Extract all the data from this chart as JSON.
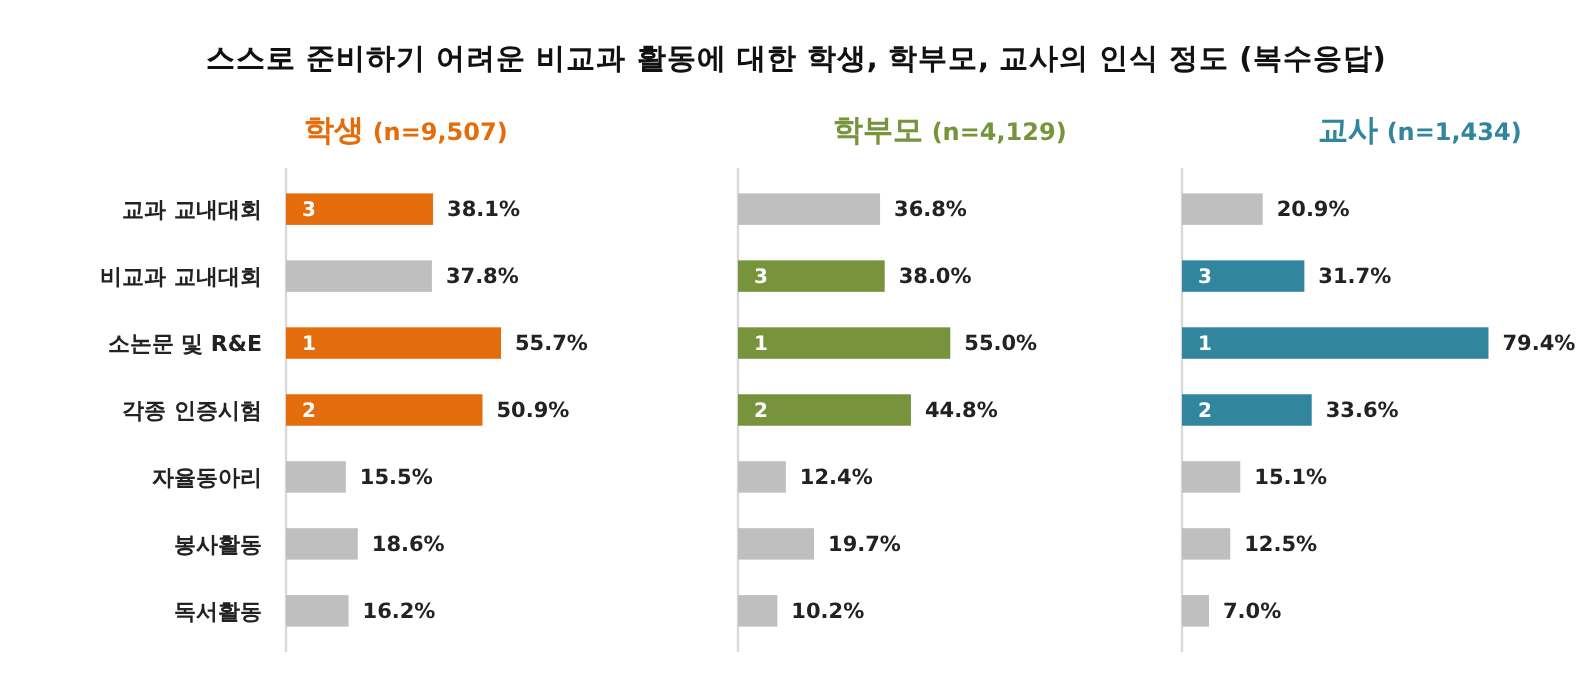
{
  "chart_data": [
    {
      "type": "bar",
      "orientation": "horizontal",
      "title": "스스로 준비하기 어려운 비교과 활동에 대한 학생, 학부모, 교사의 인식 정도 (복수응답)",
      "subtitle": "학생 (n=9,507)",
      "categories": [
        "교과 교내대회",
        "비교과 교내대회",
        "소논문 및 R&E",
        "각종 인증시험",
        "자율동아리",
        "봉사활동",
        "독서활동"
      ],
      "tick_labels": "y",
      "data_labels": true,
      "series": [
        {
          "color": "#e46c0a",
          "values": [
            38.1,
            37.8,
            55.7,
            50.9,
            15.5,
            18.6,
            16.2
          ],
          "colors": [
            "#e46c0a",
            "#bfbfbf",
            "#e46c0a",
            "#e46c0a",
            "#bfbfbf",
            "#bfbfbf",
            "#bfbfbf"
          ],
          "value_labels": [
            "38.1%",
            "37.8%",
            "55.7%",
            "50.9%",
            "15.5%",
            "18.6%",
            "16.2%"
          ]
        }
      ],
      "annotations": [
        "3",
        "1",
        "2"
      ]
    },
    {
      "type": "bar",
      "orientation": "horizontal",
      "subtitle": "학부모 (n=4,129)",
      "categories": [
        null,
        null,
        null,
        null,
        null,
        null,
        null
      ],
      "tick_labels": false,
      "data_labels": true,
      "series": [
        {
          "color": "#77933c",
          "values": [
            36.8,
            38.0,
            55.0,
            44.8,
            12.4,
            19.7,
            10.2
          ],
          "colors": [
            "#bfbfbf",
            "#77933c",
            "#77933c",
            "#77933c",
            "#bfbfbf",
            "#bfbfbf",
            "#bfbfbf"
          ],
          "value_labels": [
            "36.8%",
            "38.0%",
            "55.0%",
            "44.8%",
            "12.4%",
            "19.7%",
            "10.2%"
          ]
        }
      ],
      "annotations": [
        "3",
        "1",
        "2"
      ]
    },
    {
      "type": "bar",
      "orientation": "horizontal",
      "subtitle": "교사 (n=1,434)",
      "categories": [
        null,
        null,
        null,
        null,
        null,
        null,
        null
      ],
      "tick_labels": false,
      "data_labels": true,
      "series": [
        {
          "color": "#31859c",
          "values": [
            20.9,
            31.7,
            79.4,
            33.6,
            15.1,
            12.5,
            7.0
          ],
          "colors": [
            "#bfbfbf",
            "#31859c",
            "#31859c",
            "#31859c",
            "#bfbfbf",
            "#bfbfbf",
            "#bfbfbf"
          ],
          "value_labels": [
            "20.9%",
            "31.7%",
            "79.4%",
            "33.6%",
            "15.1%",
            "12.5%",
            "7.0%"
          ]
        }
      ],
      "annotations": [
        "3",
        "1",
        "2"
      ]
    }
  ]
}
